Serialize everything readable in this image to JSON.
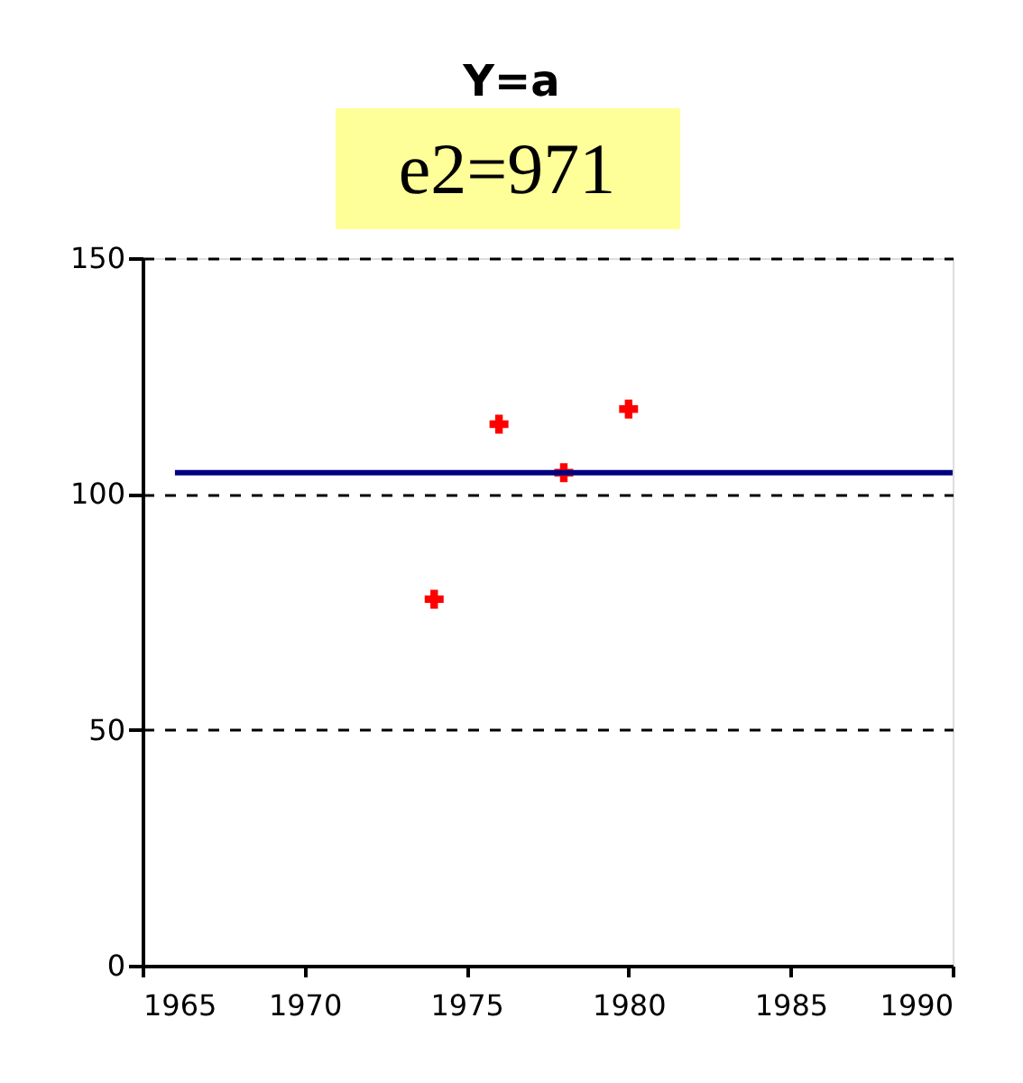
{
  "chart_data": {
    "type": "scatter",
    "title": "Y=a",
    "subtitle": "e2=971",
    "series": [
      {
        "color": "#ff0000",
        "marker": "cross",
        "x": [
          1974,
          1976,
          1978,
          1980
        ],
        "values": [
          77.7,
          114.8,
          104.5,
          118
        ]
      },
      {
        "type": "line",
        "color": "#000080",
        "marker": "none",
        "x": [
          1966,
          1990
        ],
        "values": [
          104.5,
          104.5
        ]
      }
    ],
    "xlim": [
      1965,
      1990
    ],
    "xticks": [
      1965,
      1970,
      1975,
      1980,
      1985,
      1990
    ],
    "ylim": [
      0,
      150
    ],
    "yticks": [
      0,
      50,
      100,
      150
    ],
    "grid": "y"
  }
}
